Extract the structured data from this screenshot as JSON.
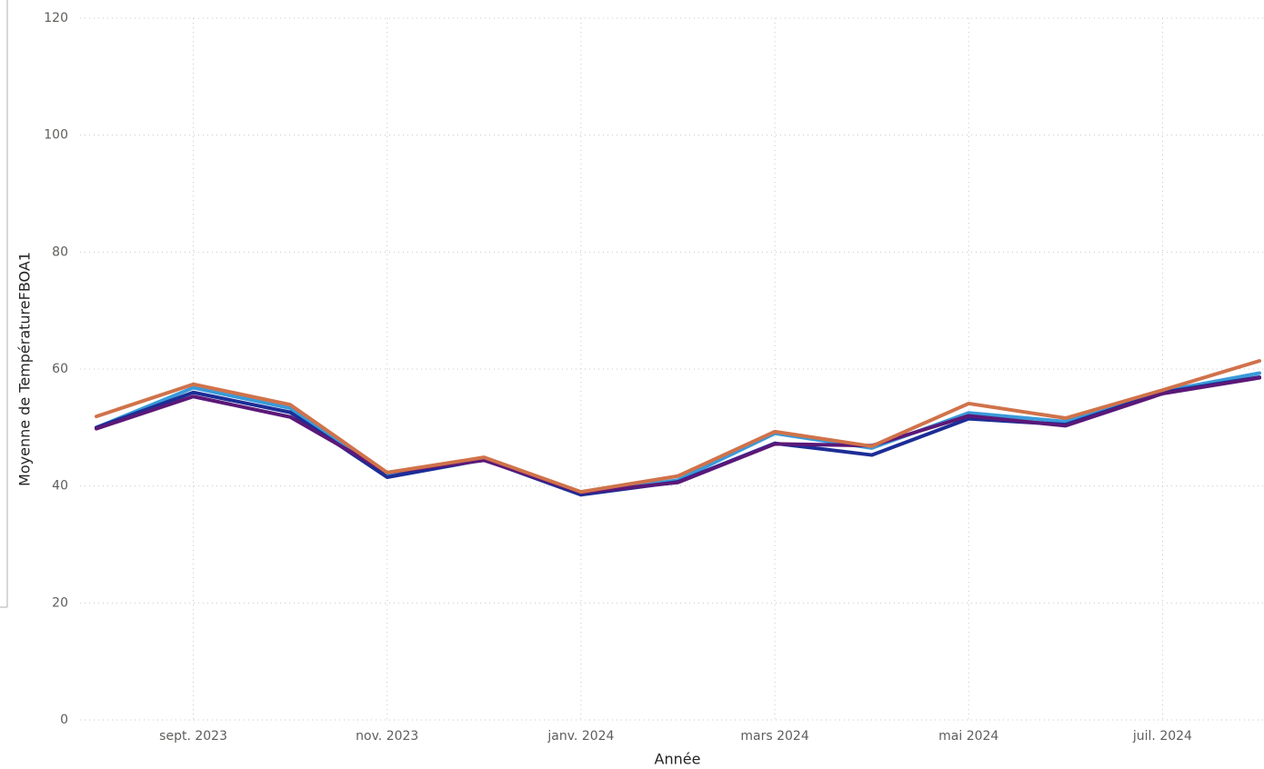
{
  "chart_data": {
    "type": "line",
    "y_label": "Moyenne de TempératureFBOA1",
    "x_label": "Année",
    "x": [
      "2023-08",
      "2023-09",
      "2023-10",
      "2023-11",
      "2023-12",
      "2024-01",
      "2024-02",
      "2024-03",
      "2024-04",
      "2024-05",
      "2024-06",
      "2024-07",
      "2024-08"
    ],
    "xticks": [
      {
        "value": "2023-09",
        "label": "sept. 2023"
      },
      {
        "value": "2023-11",
        "label": "nov. 2023"
      },
      {
        "value": "2024-01",
        "label": "janv. 2024"
      },
      {
        "value": "2024-03",
        "label": "mars 2024"
      },
      {
        "value": "2024-05",
        "label": "mai 2024"
      },
      {
        "value": "2024-07",
        "label": "juil. 2024"
      }
    ],
    "ylim": [
      0,
      120
    ],
    "yticks": [
      0,
      20,
      40,
      60,
      80,
      100,
      120
    ],
    "grid": true,
    "series": [
      {
        "color": "#3a9ad9",
        "values": [
          50.0,
          56.8,
          53.3,
          42.0,
          44.5,
          38.8,
          41.0,
          49.0,
          46.5,
          52.5,
          51.0,
          56.2,
          59.3
        ]
      },
      {
        "color": "#1c2d96",
        "values": [
          50.0,
          56.0,
          52.6,
          41.5,
          44.5,
          38.5,
          40.7,
          47.3,
          45.3,
          51.5,
          50.5,
          56.0,
          58.6
        ]
      },
      {
        "color": "#5b1878",
        "values": [
          49.8,
          55.3,
          51.8,
          42.3,
          44.4,
          38.9,
          40.6,
          47.2,
          46.9,
          52.0,
          50.3,
          55.8,
          58.5
        ]
      },
      {
        "color": "#d0724a",
        "values": [
          51.9,
          57.4,
          53.9,
          42.3,
          44.9,
          39.0,
          41.7,
          49.3,
          46.8,
          54.1,
          51.6,
          56.4,
          61.4
        ]
      }
    ]
  }
}
